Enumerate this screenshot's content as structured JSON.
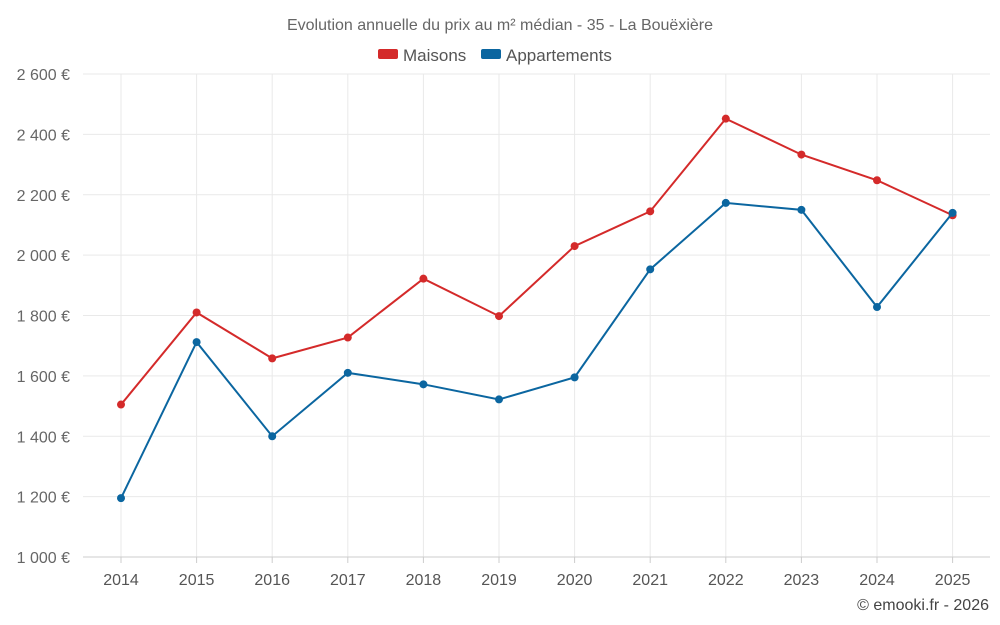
{
  "chart_data": {
    "type": "line",
    "title": "Evolution annuelle du prix au m² médian - 35 - La Bouëxière",
    "categories": [
      "2014",
      "2015",
      "2016",
      "2017",
      "2018",
      "2019",
      "2020",
      "2021",
      "2022",
      "2023",
      "2024",
      "2025"
    ],
    "series": [
      {
        "name": "Maisons",
        "color": "#d42a2a",
        "values": [
          1505,
          1810,
          1658,
          1727,
          1922,
          1798,
          2030,
          2145,
          2452,
          2333,
          2248,
          2132
        ]
      },
      {
        "name": "Appartements",
        "color": "#0b66a0",
        "values": [
          1195,
          1712,
          1400,
          1610,
          1572,
          1522,
          1595,
          1953,
          2173,
          2150,
          1828,
          2140
        ]
      }
    ],
    "ylim": [
      1000,
      2600
    ],
    "yticks": [
      1000,
      1200,
      1400,
      1600,
      1800,
      2000,
      2200,
      2400,
      2600
    ],
    "ytick_labels": [
      "1 000 €",
      "1 200 €",
      "1 400 €",
      "1 600 €",
      "1 800 €",
      "2 000 €",
      "2 200 €",
      "2 400 €",
      "2 600 €"
    ],
    "legend_position": "top-center",
    "grid": true,
    "credit": "© emooki.fr - 2026"
  }
}
